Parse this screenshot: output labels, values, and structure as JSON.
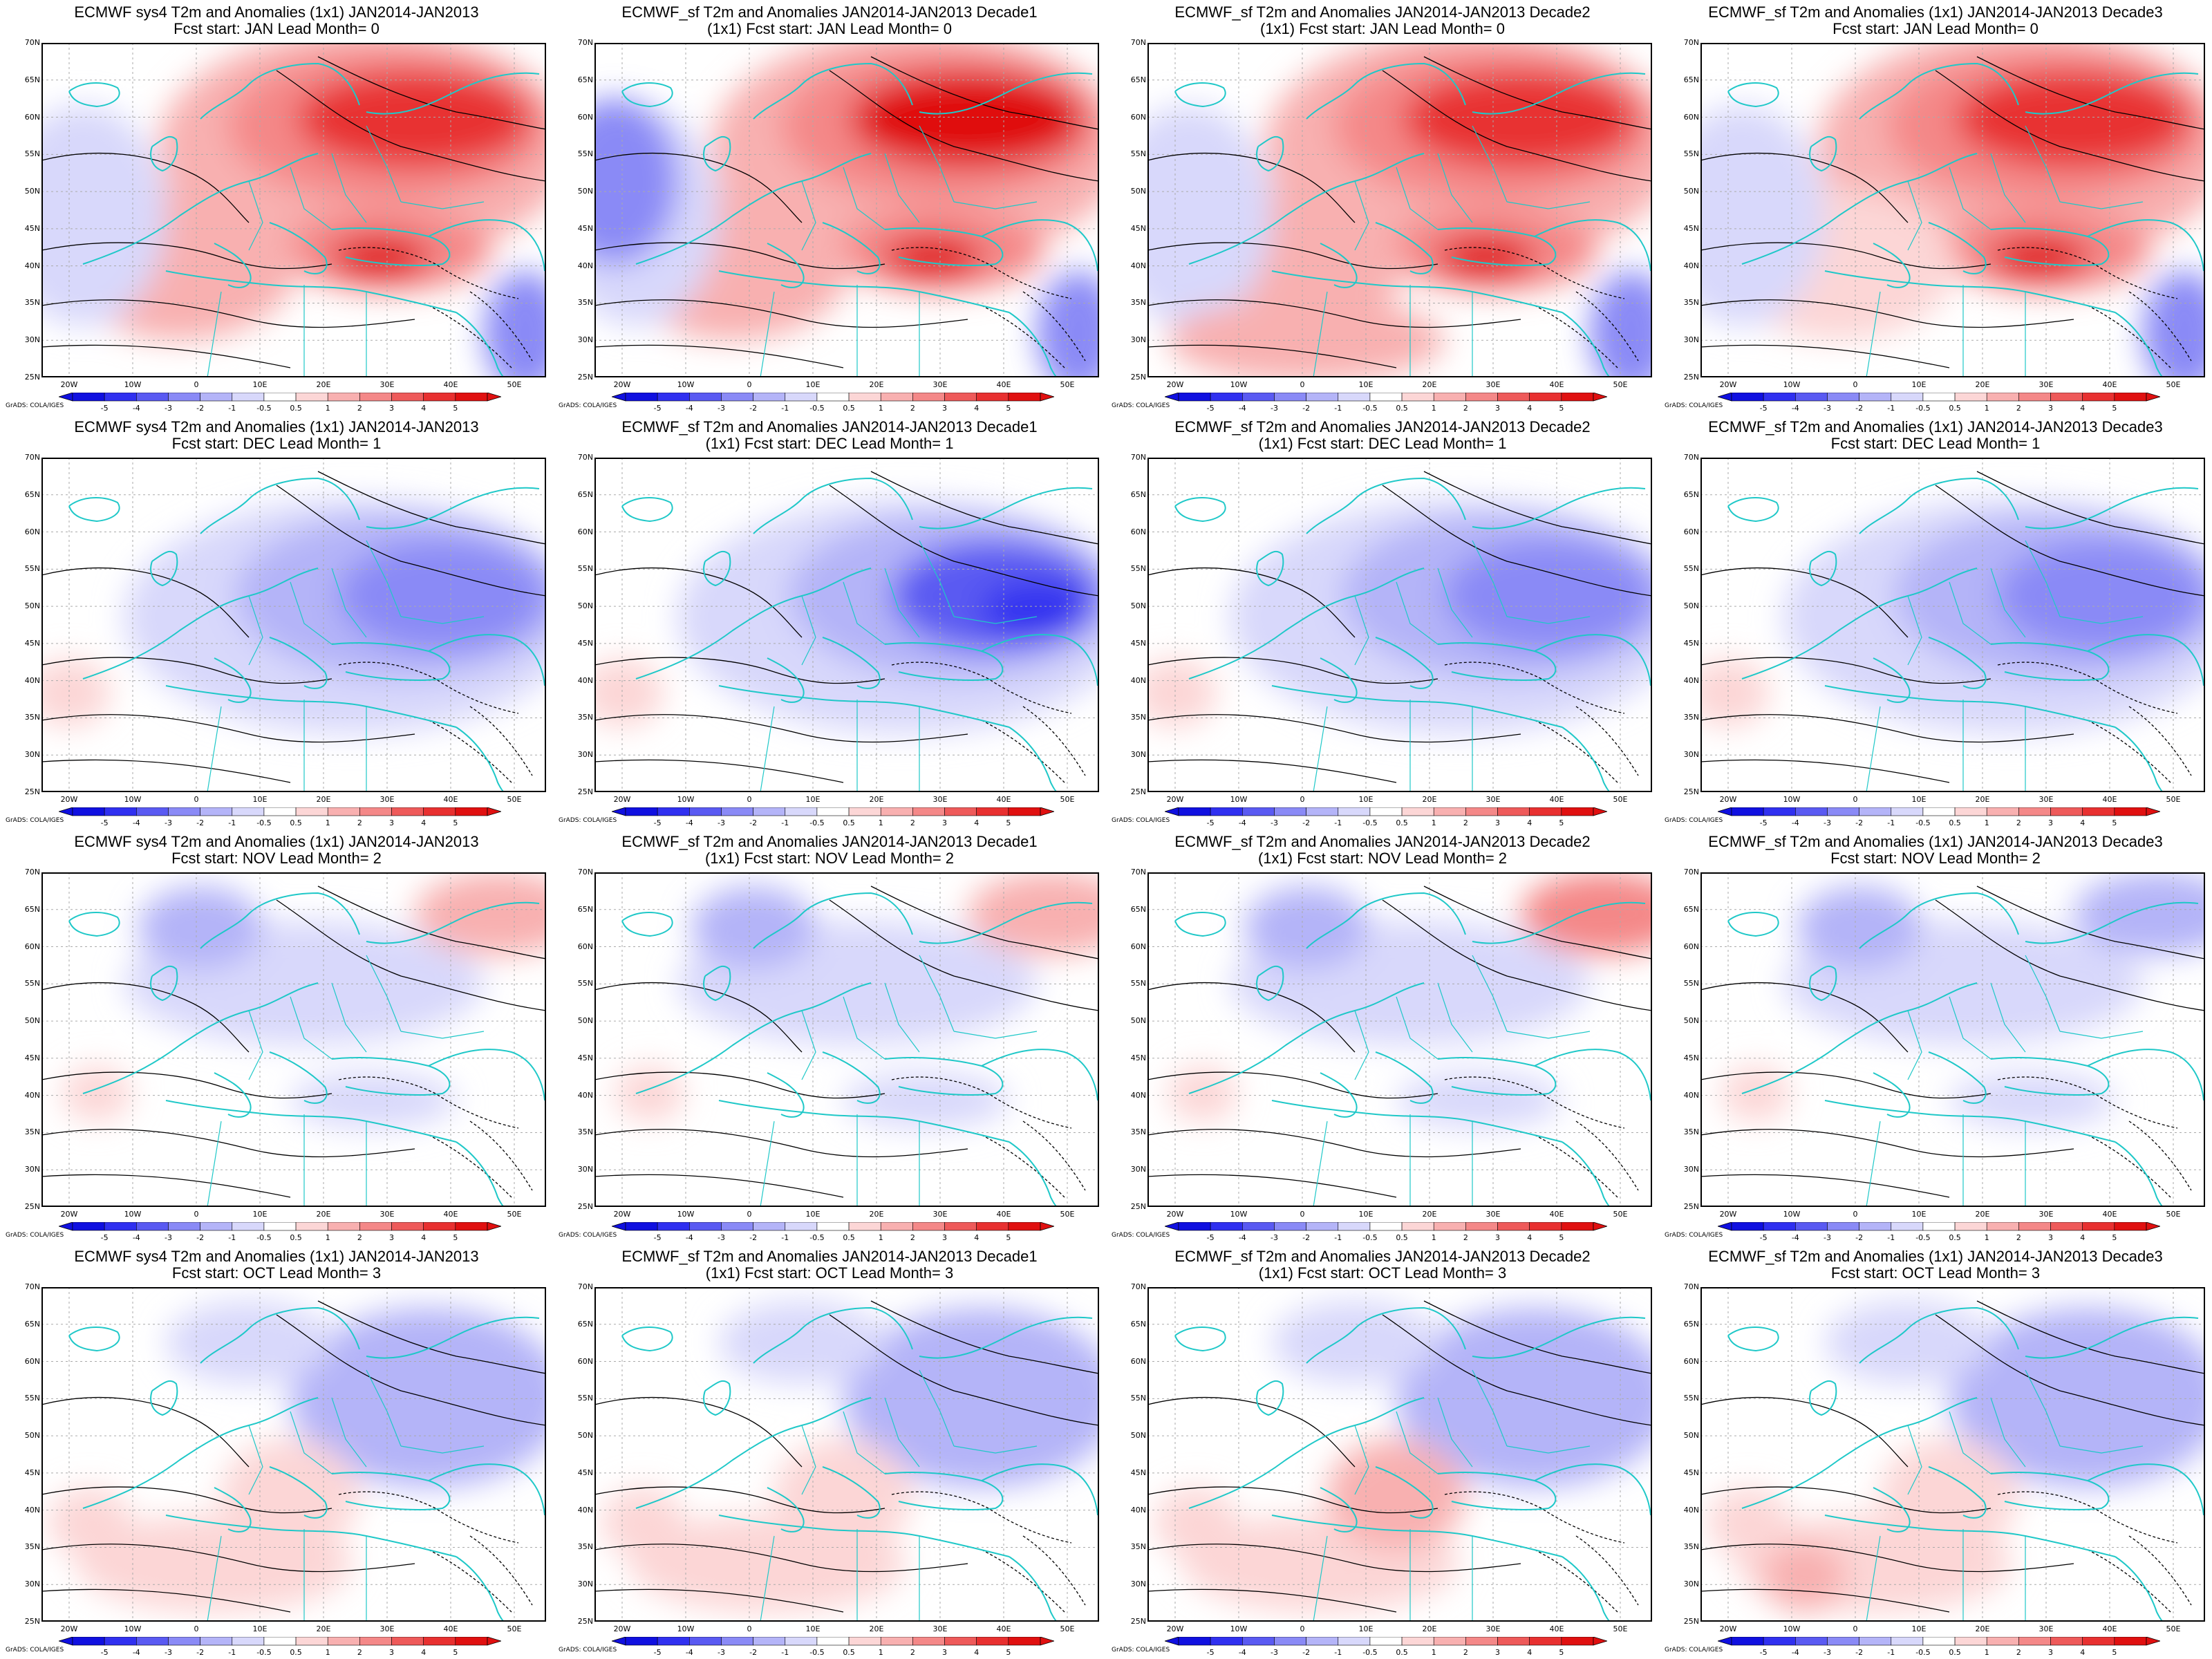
{
  "rows": [
    {
      "lead": "JAN",
      "lead_month": 0,
      "intensity": 1.0,
      "sign": 1
    },
    {
      "lead": "DEC",
      "lead_month": 1,
      "intensity": 0.85,
      "sign": -1
    },
    {
      "lead": "NOV",
      "lead_month": 2,
      "intensity": 0.35,
      "sign": -1
    },
    {
      "lead": "OCT",
      "lead_month": 3,
      "intensity": 0.35,
      "sign": -1
    }
  ],
  "columns": [
    {
      "model": "ECMWF sys4 T2m and Anomalies (1x1) JAN2014-JAN2013",
      "has_decade_line": false
    },
    {
      "model": "ECMWF_sf T2m and Anomalies JAN2014-JAN2013 Decade1",
      "has_decade_line": true
    },
    {
      "model": "ECMWF_sf T2m and Anomalies JAN2014-JAN2013 Decade2",
      "has_decade_line": true
    },
    {
      "model": "ECMWF_sf T2m and Anomalies (1x1) JAN2014-JAN2013 Decade3",
      "has_decade_line": false
    }
  ],
  "panels": [
    [
      {
        "line1": "ECMWF sys4 T2m and Anomalies (1x1) JAN2014-JAN2013",
        "line2": "Fcst start: JAN  Lead Month= 0"
      },
      {
        "line1": "ECMWF_sf T2m and Anomalies JAN2014-JAN2013 Decade1",
        "line2": "(1x1) Fcst start: JAN  Lead Month= 0"
      },
      {
        "line1": "ECMWF_sf T2m and Anomalies JAN2014-JAN2013 Decade2",
        "line2": "(1x1) Fcst start: JAN  Lead Month= 0"
      },
      {
        "line1": "ECMWF_sf T2m and Anomalies (1x1) JAN2014-JAN2013 Decade3",
        "line2": "Fcst start: JAN  Lead Month= 0"
      }
    ],
    [
      {
        "line1": "ECMWF sys4 T2m and Anomalies (1x1) JAN2014-JAN2013",
        "line2": "Fcst start: DEC  Lead Month= 1"
      },
      {
        "line1": "ECMWF_sf T2m and Anomalies JAN2014-JAN2013 Decade1",
        "line2": "(1x1) Fcst start: DEC  Lead Month= 1"
      },
      {
        "line1": "ECMWF_sf T2m and Anomalies JAN2014-JAN2013 Decade2",
        "line2": "(1x1) Fcst start: DEC  Lead Month= 1"
      },
      {
        "line1": "ECMWF_sf T2m and Anomalies (1x1) JAN2014-JAN2013 Decade3",
        "line2": "Fcst start: DEC  Lead Month= 1"
      }
    ],
    [
      {
        "line1": "ECMWF sys4 T2m and Anomalies (1x1) JAN2014-JAN2013",
        "line2": "Fcst start: NOV  Lead Month= 2"
      },
      {
        "line1": "ECMWF_sf T2m and Anomalies JAN2014-JAN2013 Decade1",
        "line2": "(1x1) Fcst start: NOV  Lead Month= 2"
      },
      {
        "line1": "ECMWF_sf T2m and Anomalies JAN2014-JAN2013 Decade2",
        "line2": "(1x1) Fcst start: NOV  Lead Month= 2"
      },
      {
        "line1": "ECMWF_sf T2m and Anomalies (1x1) JAN2014-JAN2013 Decade3",
        "line2": "Fcst start: NOV  Lead Month= 2"
      }
    ],
    [
      {
        "line1": "ECMWF sys4 T2m and Anomalies (1x1) JAN2014-JAN2013",
        "line2": "Fcst start: OCT  Lead Month= 3"
      },
      {
        "line1": "ECMWF_sf T2m and Anomalies JAN2014-JAN2013 Decade1",
        "line2": "(1x1) Fcst start: OCT  Lead Month= 3"
      },
      {
        "line1": "ECMWF_sf T2m and Anomalies JAN2014-JAN2013 Decade2",
        "line2": "(1x1) Fcst start: OCT  Lead Month= 3"
      },
      {
        "line1": "ECMWF_sf T2m and Anomalies (1x1) JAN2014-JAN2013 Decade3",
        "line2": "Fcst start: OCT  Lead Month= 3"
      }
    ]
  ],
  "lat_labels": [
    "70N",
    "65N",
    "60N",
    "55N",
    "50N",
    "45N",
    "40N",
    "35N",
    "30N",
    "25N"
  ],
  "lon_labels": [
    "20W",
    "10W",
    "0",
    "10E",
    "20E",
    "30E",
    "40E",
    "50E"
  ],
  "colorbar": {
    "labels": [
      "-5",
      "-4",
      "-3",
      "-2",
      "-1",
      "-0.5",
      "0.5",
      "1",
      "2",
      "3",
      "4",
      "5"
    ],
    "colors": [
      "#1010e0",
      "#3030f0",
      "#5a5af2",
      "#8a8af6",
      "#b4b4f8",
      "#d8d8fb",
      "#ffffff",
      "#fcd6d6",
      "#f8b0b0",
      "#f48888",
      "#ee5a5a",
      "#e83030",
      "#e01010"
    ]
  },
  "credit": "GrADS: COLA/IGES",
  "colors": {
    "land_boundary": "#1fc8c8",
    "contour": "#000000"
  }
}
